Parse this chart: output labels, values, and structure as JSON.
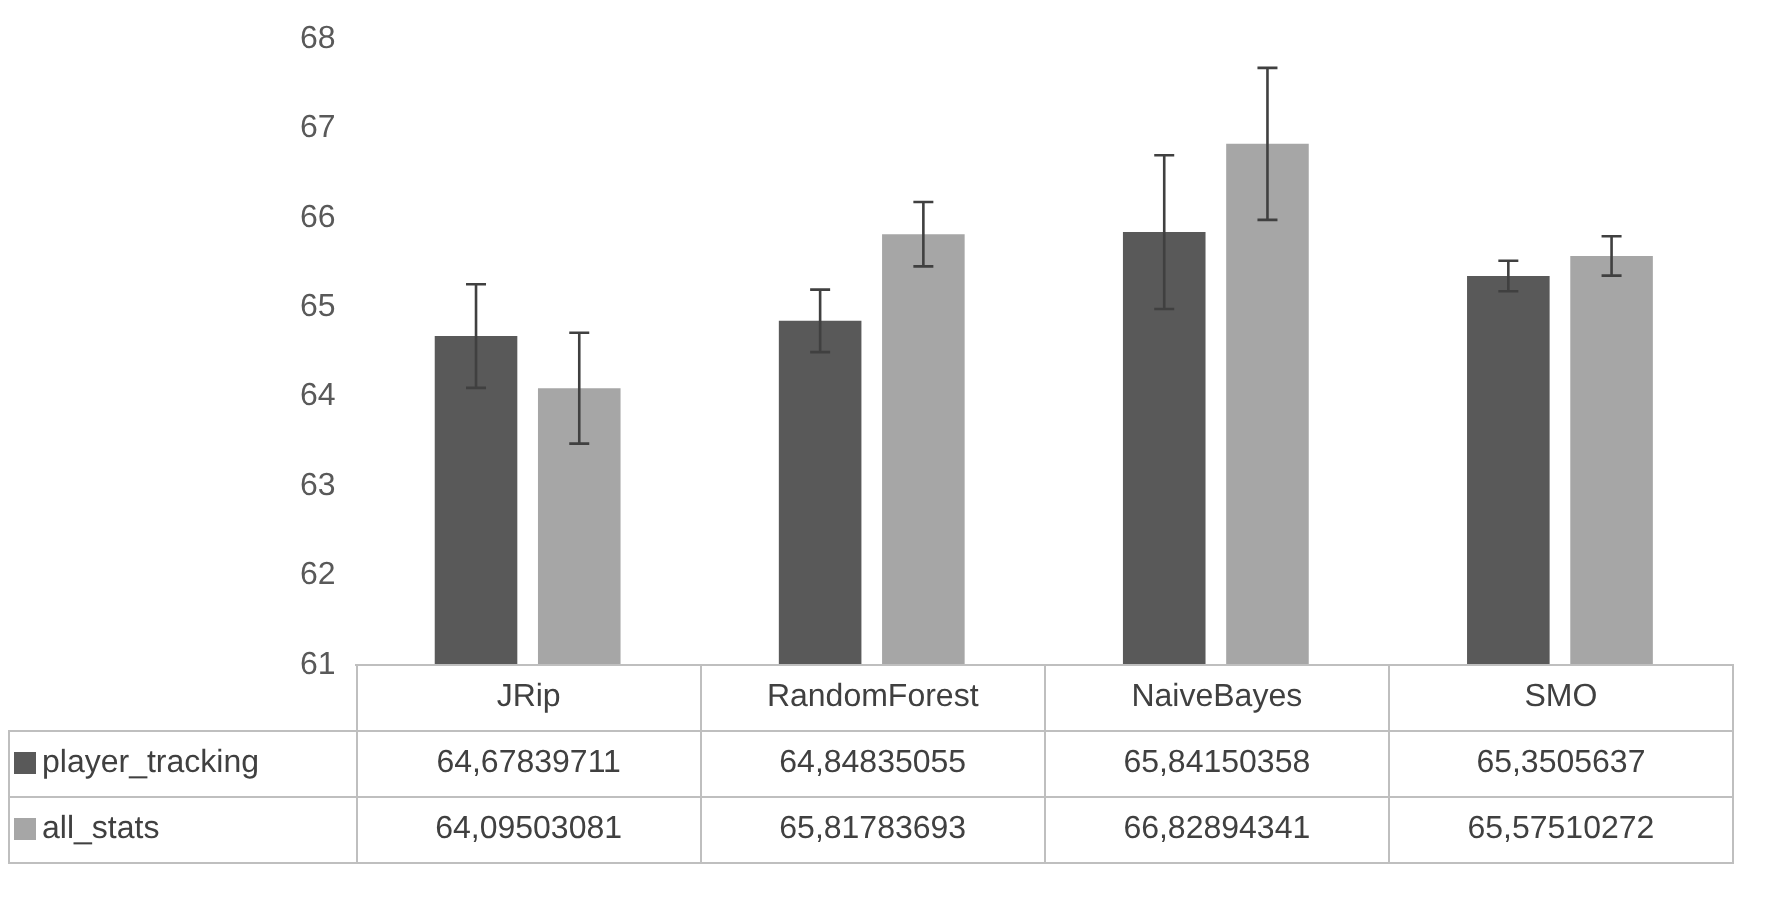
{
  "chart_data": {
    "type": "bar",
    "categories": [
      "JRip",
      "RandomForest",
      "NaiveBayes",
      "SMO"
    ],
    "series": [
      {
        "name": "player_tracking",
        "color": "#595959",
        "values": [
          64.67839711,
          64.84835055,
          65.84150358,
          65.3505637
        ],
        "errors": [
          0.58,
          0.35,
          0.86,
          0.17
        ],
        "value_labels": [
          "64,67839711",
          "64,84835055",
          "65,84150358",
          "65,3505637"
        ]
      },
      {
        "name": "all_stats",
        "color": "#a6a6a6",
        "values": [
          64.09503081,
          65.81783693,
          66.82894341,
          65.57510272
        ],
        "errors": [
          0.62,
          0.36,
          0.85,
          0.22
        ],
        "value_labels": [
          "64,09503081",
          "65,81783693",
          "66,82894341",
          "65,57510272"
        ]
      }
    ],
    "ylim": [
      61,
      68
    ],
    "yticks": [
      61,
      62,
      63,
      64,
      65,
      66,
      67,
      68
    ],
    "grid": false,
    "legend": "bottom"
  }
}
